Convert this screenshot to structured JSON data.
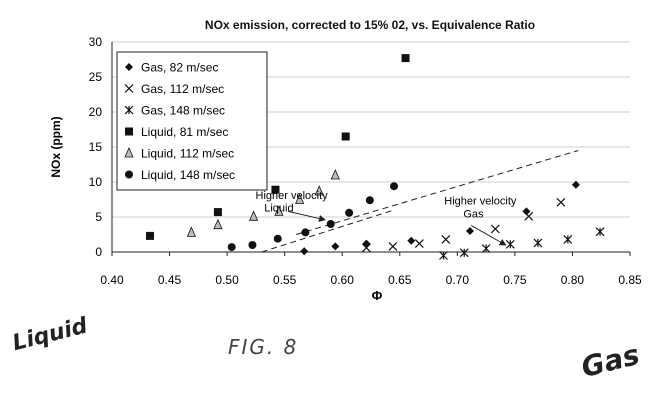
{
  "chart_data": {
    "type": "scatter",
    "title": "NOx emission, corrected to 15% 02, vs. Equivalence Ratio",
    "xlabel": "Φ",
    "ylabel": "NOx (ppm)",
    "xlim": [
      0.4,
      0.85
    ],
    "ylim": [
      0,
      30
    ],
    "xticks": [
      "0.40",
      "0.45",
      "0.50",
      "0.55",
      "0.60",
      "0.65",
      "0.70",
      "0.75",
      "0.80",
      "0.85"
    ],
    "yticks": [
      "0",
      "5",
      "10",
      "15",
      "20",
      "25",
      "30"
    ],
    "grid": "horizontal",
    "legend_position": "top-left",
    "series": [
      {
        "name": "Gas, 82 m/sec",
        "marker": "diamond",
        "x": [
          0.567,
          0.594,
          0.621,
          0.66,
          0.711,
          0.76,
          0.803
        ],
        "y": [
          0.1,
          0.8,
          1.2,
          1.6,
          3.0,
          5.8,
          9.6
        ]
      },
      {
        "name": "Gas, 112 m/sec",
        "marker": "x",
        "x": [
          0.621,
          0.644,
          0.667,
          0.69,
          0.733,
          0.762,
          0.79
        ],
        "y": [
          0.6,
          0.8,
          1.2,
          1.8,
          3.3,
          5.1,
          7.1
        ]
      },
      {
        "name": "Gas, 148 m/sec",
        "marker": "asterisk",
        "x": [
          0.688,
          0.706,
          0.725,
          0.746,
          0.77,
          0.796,
          0.824
        ],
        "y": [
          -0.5,
          -0.1,
          0.5,
          1.1,
          1.3,
          1.8,
          2.9
        ]
      },
      {
        "name": "Liquid, 81 m/sec",
        "marker": "square",
        "x": [
          0.433,
          0.492,
          0.542,
          0.603,
          0.655
        ],
        "y": [
          2.3,
          5.7,
          8.9,
          16.5,
          27.7
        ]
      },
      {
        "name": "Liquid, 112 m/sec",
        "marker": "triangle",
        "x": [
          0.469,
          0.492,
          0.523,
          0.545,
          0.563,
          0.58,
          0.594
        ],
        "y": [
          2.8,
          3.9,
          5.1,
          5.8,
          7.5,
          8.7,
          11.0
        ]
      },
      {
        "name": "Liquid, 148 m/sec",
        "marker": "circle",
        "x": [
          0.504,
          0.522,
          0.544,
          0.568,
          0.59,
          0.606,
          0.624,
          0.645
        ],
        "y": [
          0.7,
          1.0,
          1.9,
          2.8,
          4.0,
          5.6,
          7.4,
          9.4
        ]
      }
    ],
    "trend_lines": [
      {
        "x": [
          0.53,
          0.645
        ],
        "y": [
          0.0,
          6.0
        ]
      },
      {
        "x": [
          0.56,
          0.805
        ],
        "y": [
          2.5,
          14.5
        ]
      }
    ],
    "annotations": [
      {
        "text": "Higher velocity",
        "x": 0.556,
        "y": 7.6
      },
      {
        "text": "Liquid",
        "x": 0.545,
        "y": 5.8
      },
      {
        "text": "Higher velocity",
        "x": 0.72,
        "y": 6.8
      },
      {
        "text": "Gas",
        "x": 0.714,
        "y": 4.9
      }
    ],
    "arrows": [
      {
        "from": [
          0.553,
          5.8
        ],
        "to": [
          0.585,
          4.6
        ]
      },
      {
        "from": [
          0.712,
          3.8
        ],
        "to": [
          0.742,
          1.0
        ]
      }
    ]
  },
  "handwriting": {
    "liquid": "Liquid",
    "gas": "Gas",
    "figure": "FIG. 8"
  },
  "colors": {
    "marker": "#111111",
    "grid": "#cfcfcf",
    "axis": "#222222",
    "triangle_fill": "#bdbdbd"
  }
}
